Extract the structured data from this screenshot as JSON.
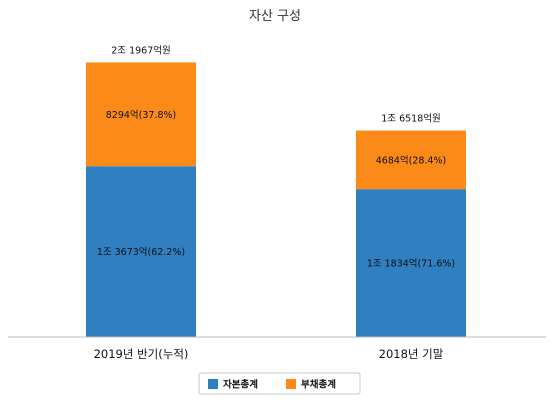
{
  "chart_data": {
    "type": "bar",
    "stacked": true,
    "title": "자산 구성",
    "categories": [
      "2019년 반기(누적)",
      "2018년 기말"
    ],
    "totals": [
      "2조 1967억원",
      "1조 6518억원"
    ],
    "series": [
      {
        "name": "자본총계",
        "color": "#2f7fc1",
        "values": [
          62.2,
          71.6
        ],
        "labels": [
          "1조 3673억(62.2%)",
          "1조 1834억(71.6%)"
        ]
      },
      {
        "name": "부채총계",
        "color": "#fb8a18",
        "values": [
          37.8,
          28.4
        ],
        "labels": [
          "8294억(37.8%)",
          "4684억(28.4%)"
        ]
      }
    ],
    "totals_value": [
      21967,
      16518
    ],
    "ylim": [
      0,
      24000
    ],
    "grid": false,
    "legend": "bottom"
  }
}
